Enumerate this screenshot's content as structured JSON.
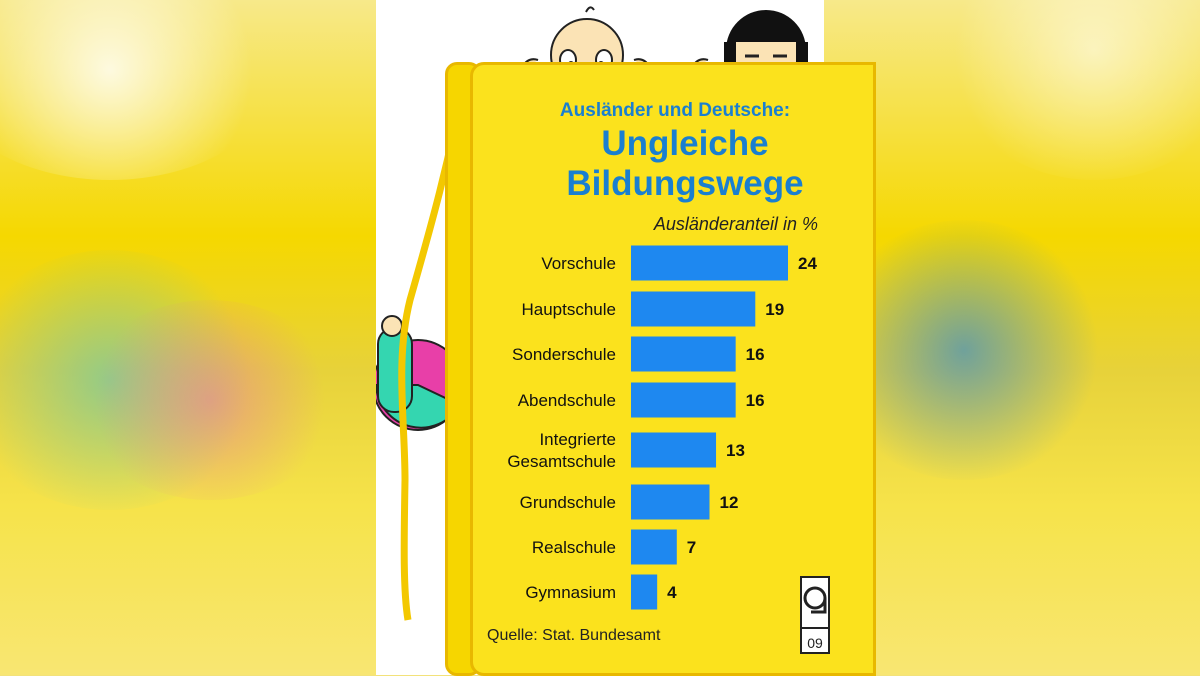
{
  "header": {
    "subtitle": "Ausländer und Deutsche:",
    "title_line1": "Ungleiche",
    "title_line2": "Bildungswege",
    "unit_label": "Ausländeranteil in %"
  },
  "footer": {
    "source": "Quelle: Stat. Bundesamt",
    "logo_text": "09"
  },
  "colors": {
    "bar": "#1e88f0",
    "title": "#1a7fd0",
    "book": "#fbe21d"
  },
  "chart_data": {
    "type": "bar",
    "orientation": "horizontal",
    "title": "Ungleiche Bildungswege",
    "subtitle": "Ausländer und Deutsche:",
    "xlabel": "Ausländeranteil in %",
    "categories": [
      [
        "Vorschule"
      ],
      [
        "Hauptschule"
      ],
      [
        "Sonderschule"
      ],
      [
        "Abendschule"
      ],
      [
        "Integrierte",
        "Gesamtschule"
      ],
      [
        "Grundschule"
      ],
      [
        "Realschule"
      ],
      [
        "Gymnasium"
      ]
    ],
    "values": [
      24,
      19,
      16,
      16,
      13,
      12,
      7,
      4
    ],
    "xlim": [
      0,
      24
    ],
    "grid": false,
    "legend": "none"
  }
}
